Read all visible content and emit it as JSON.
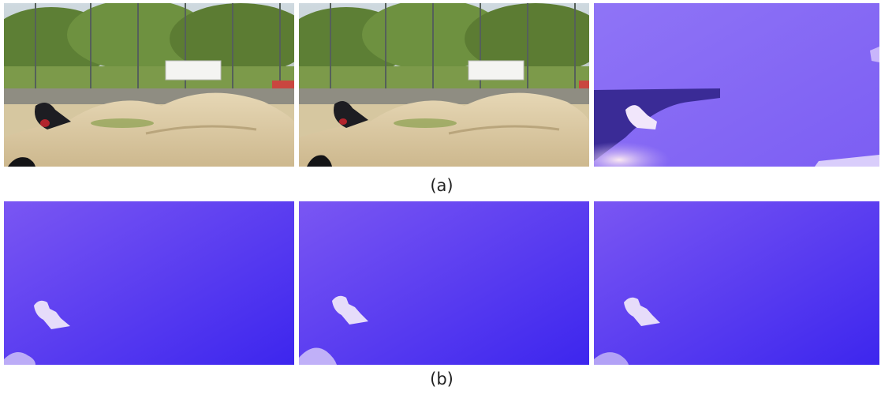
{
  "figure": {
    "caption_a": "(a)",
    "caption_b": "(b)"
  },
  "panels": {
    "row_a": [
      "photo-frame",
      "photo-frame",
      "flow-field"
    ],
    "row_b": [
      "flow-field",
      "flow-field",
      "flow-field"
    ]
  },
  "colors": {
    "flow_purple": "#8a6cf6",
    "flow_blue": "#4a2cf0",
    "flow_light": "#e8dcf8",
    "sand": "#d9c9a6",
    "grass": "#6b8e3a"
  }
}
